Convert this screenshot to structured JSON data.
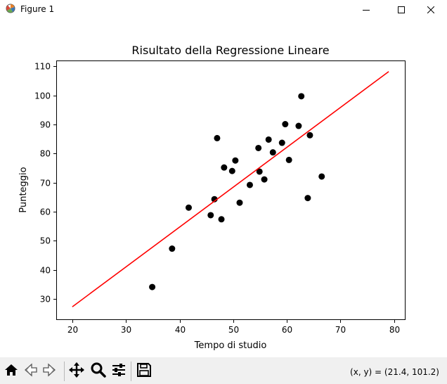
{
  "window": {
    "title": "Figure 1",
    "icons": [
      "matplotlib-icon",
      "minimize-icon",
      "maximize-icon",
      "close-icon"
    ]
  },
  "toolbar": {
    "icons": [
      "home-icon",
      "back-icon",
      "forward-icon",
      "pan-icon",
      "zoom-icon",
      "configure-subplots-icon",
      "save-icon"
    ],
    "coords_text": "(x, y) = (21.4, 101.2)"
  },
  "chart_data": {
    "type": "scatter",
    "title": "Risultato della Regressione Lineare",
    "xlabel": "Tempo di studio",
    "ylabel": "Punteggio",
    "xlim": [
      17,
      82
    ],
    "ylim": [
      23,
      112
    ],
    "xticks": [
      20,
      30,
      40,
      50,
      60,
      70,
      80
    ],
    "yticks": [
      30,
      40,
      50,
      60,
      70,
      80,
      90,
      100,
      110
    ],
    "grid": false,
    "points": {
      "color": "#000000",
      "x": [
        34.9,
        38.6,
        41.7,
        45.8,
        46.5,
        47.0,
        47.8,
        48.3,
        49.8,
        50.4,
        51.2,
        53.1,
        54.7,
        54.9,
        55.8,
        56.6,
        57.4,
        59.1,
        59.7,
        60.4,
        62.2,
        62.7,
        63.9,
        64.3,
        66.5
      ],
      "y": [
        34.1,
        47.3,
        61.4,
        58.8,
        64.3,
        85.3,
        57.4,
        75.2,
        74.0,
        77.6,
        63.1,
        69.2,
        81.9,
        73.8,
        71.1,
        84.8,
        80.4,
        83.7,
        90.1,
        77.8,
        89.5,
        99.7,
        64.7,
        86.3,
        72.1
      ]
    },
    "regression_line": {
      "color": "#ff0000",
      "x": [
        20,
        79
      ],
      "y": [
        27.3,
        108.2
      ]
    }
  }
}
